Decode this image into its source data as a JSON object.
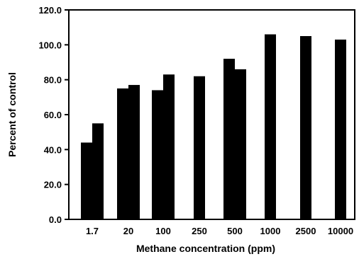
{
  "chart_data": {
    "type": "bar",
    "xlabel": "Methane concentration (ppm)",
    "ylabel": "Percent of control",
    "ylim": [
      0,
      120
    ],
    "y_ticks": [
      "0.0",
      "20.0",
      "40.0",
      "60.0",
      "80.0",
      "100.0",
      "120.0"
    ],
    "y_tick_values": [
      0,
      20,
      40,
      60,
      80,
      100,
      120
    ],
    "categories": [
      "1.7",
      "20",
      "100",
      "250",
      "500",
      "1000",
      "2500",
      "10000"
    ],
    "groups": [
      {
        "category": "1.7",
        "values": [
          44,
          55
        ]
      },
      {
        "category": "20",
        "values": [
          75,
          77
        ]
      },
      {
        "category": "100",
        "values": [
          74,
          83
        ]
      },
      {
        "category": "250",
        "values": [
          82
        ]
      },
      {
        "category": "500",
        "values": [
          92,
          86
        ]
      },
      {
        "category": "1000",
        "values": [
          106
        ]
      },
      {
        "category": "2500",
        "values": [
          105
        ]
      },
      {
        "category": "10000",
        "values": [
          103
        ]
      }
    ],
    "bar_color": "#000000",
    "grid": false,
    "legend": "none"
  }
}
